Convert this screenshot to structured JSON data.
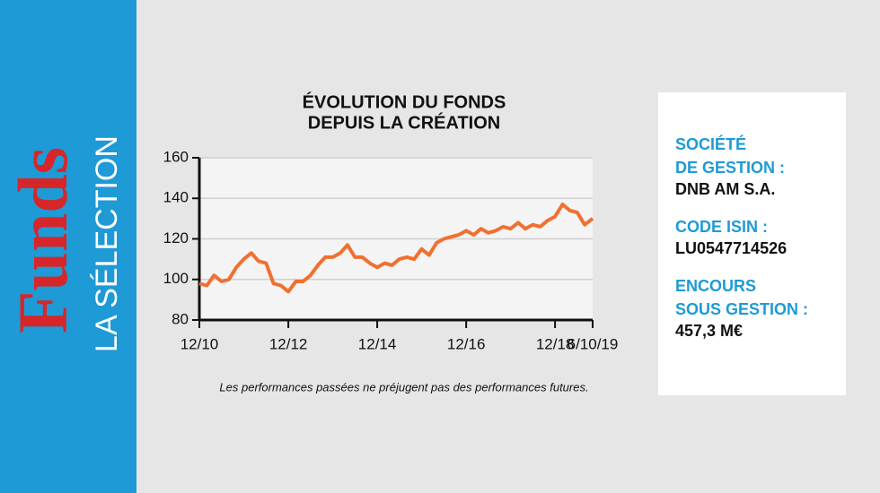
{
  "sidebar": {
    "brand": "Funds",
    "subtitle": "LA SÉLECTION"
  },
  "info": [
    {
      "label": [
        "SOCIÉTÉ",
        "DE GESTION :"
      ],
      "value": "DNB AM S.A."
    },
    {
      "label": [
        "CODE ISIN :"
      ],
      "value": "LU0547714526"
    },
    {
      "label": [
        "ENCOURS",
        "SOUS GESTION :"
      ],
      "value": "457,3  M€"
    }
  ],
  "chart_data": {
    "type": "line",
    "title": [
      "ÉVOLUTION DU FONDS",
      "DEPUIS LA CRÉATION"
    ],
    "note": "Les performances passées ne préjugent pas des performances futures.",
    "x": [
      "2010-12",
      "2011-02",
      "2011-04",
      "2011-06",
      "2011-08",
      "2011-10",
      "2011-12",
      "2012-02",
      "2012-04",
      "2012-06",
      "2012-08",
      "2012-10",
      "2012-12",
      "2013-02",
      "2013-04",
      "2013-06",
      "2013-08",
      "2013-10",
      "2013-12",
      "2014-02",
      "2014-04",
      "2014-06",
      "2014-08",
      "2014-10",
      "2014-12",
      "2015-02",
      "2015-04",
      "2015-06",
      "2015-08",
      "2015-10",
      "2015-12",
      "2016-02",
      "2016-04",
      "2016-06",
      "2016-08",
      "2016-10",
      "2016-12",
      "2017-02",
      "2017-04",
      "2017-06",
      "2017-08",
      "2017-10",
      "2017-12",
      "2018-02",
      "2018-04",
      "2018-06",
      "2018-08",
      "2018-10",
      "2018-12",
      "2019-02",
      "2019-04",
      "2019-06",
      "2019-08",
      "2019-10-06"
    ],
    "series": [
      {
        "color": "#f07030",
        "values": [
          98,
          97,
          102,
          99,
          100,
          106,
          110,
          113,
          109,
          108,
          98,
          97,
          94,
          99,
          99,
          102,
          107,
          111,
          111,
          113,
          117,
          111,
          111,
          108,
          106,
          108,
          107,
          110,
          111,
          110,
          115,
          112,
          118,
          120,
          121,
          122,
          124,
          122,
          125,
          123,
          124,
          126,
          125,
          128,
          125,
          127,
          126,
          129,
          131,
          137,
          134,
          133,
          127,
          130
        ]
      }
    ],
    "xlim": [
      "2010-12",
      "2019-10-06"
    ],
    "xticks": [
      {
        "value": "2010-12",
        "label": "12/10"
      },
      {
        "value": "2012-12",
        "label": "12/12"
      },
      {
        "value": "2014-12",
        "label": "12/14"
      },
      {
        "value": "2016-12",
        "label": "12/16"
      },
      {
        "value": "2018-12",
        "label": "12/18"
      },
      {
        "value": "2019-10-06",
        "label": "6/10/19"
      }
    ],
    "ylim": [
      80,
      160
    ],
    "yticks": [
      80,
      100,
      120,
      140,
      160
    ],
    "grid": true
  }
}
